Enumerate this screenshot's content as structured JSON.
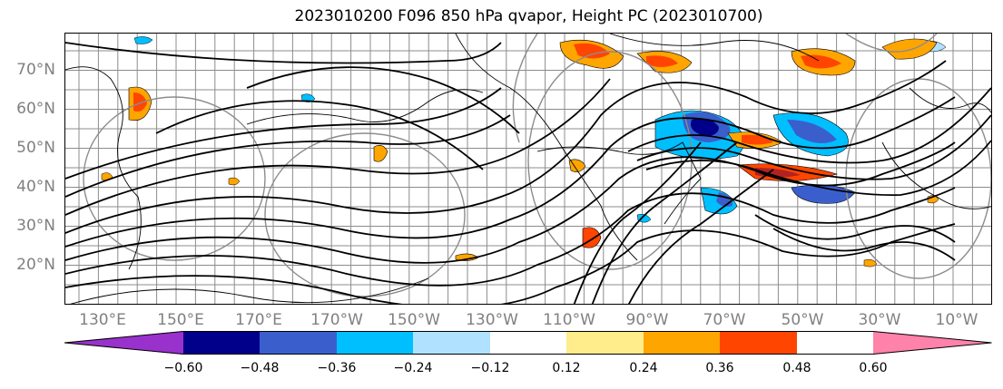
{
  "title": "2023010200 F096 850 hPa qvapor, Height PC (2023010700)",
  "map": {
    "lat_labels": [
      "70°N",
      "60°N",
      "50°N",
      "40°N",
      "30°N",
      "20°N"
    ],
    "lon_labels": [
      "130°E",
      "150°E",
      "170°E",
      "170°W",
      "150°W",
      "130°W",
      "110°W",
      "90°W",
      "70°W",
      "50°W",
      "30°W",
      "10°W"
    ],
    "field": "850 hPa qvapor",
    "overlay": "Height PC"
  },
  "colorbar": {
    "colors": [
      "#9932cc",
      "#00008b",
      "#3a5fcd",
      "#00bfff",
      "#b0e2ff",
      "#ffffff",
      "#ffec8b",
      "#ffa500",
      "#ff4500",
      "#b22222",
      "#ff82ab"
    ],
    "ticks": [
      "−0.60",
      "−0.48",
      "−0.36",
      "−0.24",
      "−0.12",
      "0.12",
      "0.24",
      "0.36",
      "0.48",
      "0.60"
    ],
    "extend": "both"
  }
}
